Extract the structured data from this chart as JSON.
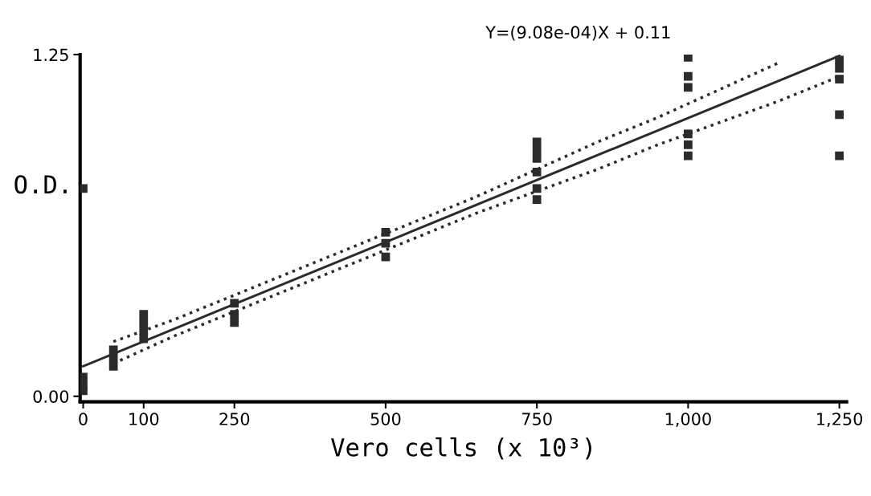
{
  "chart_data": {
    "type": "scatter",
    "xlabel": "Vero cells (x 10³)",
    "ylabel": "O.D.",
    "annotations": [
      "Y=(9.08e-04)X + 0.11"
    ],
    "xlim": [
      -5,
      1262
    ],
    "ylim": [
      -0.02,
      1.25
    ],
    "xticks": [
      0,
      100,
      250,
      500,
      750,
      {
        "value": 1000,
        "label": "1,000"
      },
      {
        "value": 1250,
        "label": "1,250"
      }
    ],
    "yticks": [
      {
        "value": 0,
        "label": "0.00"
      },
      1.25
    ],
    "grid": false,
    "series": [
      {
        "color": "#2b2b2b",
        "marker": "square",
        "x": [
          0,
          0,
          0,
          0,
          50,
          50,
          50,
          100,
          100,
          100,
          100,
          250,
          250,
          250,
          500,
          500,
          500,
          750,
          750,
          750,
          750,
          750,
          750,
          1000,
          1000,
          1000,
          1000,
          1000,
          1000,
          1250,
          1250,
          1250,
          1250,
          1250
        ],
        "values": [
          0.76,
          0.07,
          0.04,
          0.02,
          0.17,
          0.14,
          0.11,
          0.3,
          0.27,
          0.24,
          0.21,
          0.34,
          0.3,
          0.27,
          0.6,
          0.56,
          0.51,
          0.93,
          0.9,
          0.87,
          0.82,
          0.76,
          0.72,
          1.24,
          1.17,
          1.13,
          0.96,
          0.92,
          0.88,
          1.23,
          1.2,
          1.16,
          1.03,
          0.88
        ]
      },
      {
        "type": "line",
        "color": "#2b2b2b",
        "line_style": "solid",
        "marker": "none",
        "x": [
          0,
          1250
        ],
        "values": [
          0.11,
          1.245
        ]
      },
      {
        "type": "line",
        "color": "#2b2b2b",
        "line_style": "dotted",
        "marker": "none",
        "x": [
          50,
          150,
          250,
          350,
          450,
          550,
          650,
          750,
          850,
          950,
          1050,
          1150
        ],
        "values": [
          0.2,
          0.28,
          0.37,
          0.46,
          0.55,
          0.64,
          0.73,
          0.83,
          0.93,
          1.02,
          1.12,
          1.22
        ]
      },
      {
        "type": "line",
        "color": "#2b2b2b",
        "line_style": "dotted",
        "marker": "none",
        "x": [
          50,
          150,
          250,
          350,
          450,
          550,
          650,
          750,
          850,
          950,
          1050,
          1150,
          1250
        ],
        "values": [
          0.12,
          0.22,
          0.31,
          0.4,
          0.49,
          0.58,
          0.67,
          0.75,
          0.83,
          0.92,
          1.0,
          1.08,
          1.17
        ]
      }
    ]
  }
}
